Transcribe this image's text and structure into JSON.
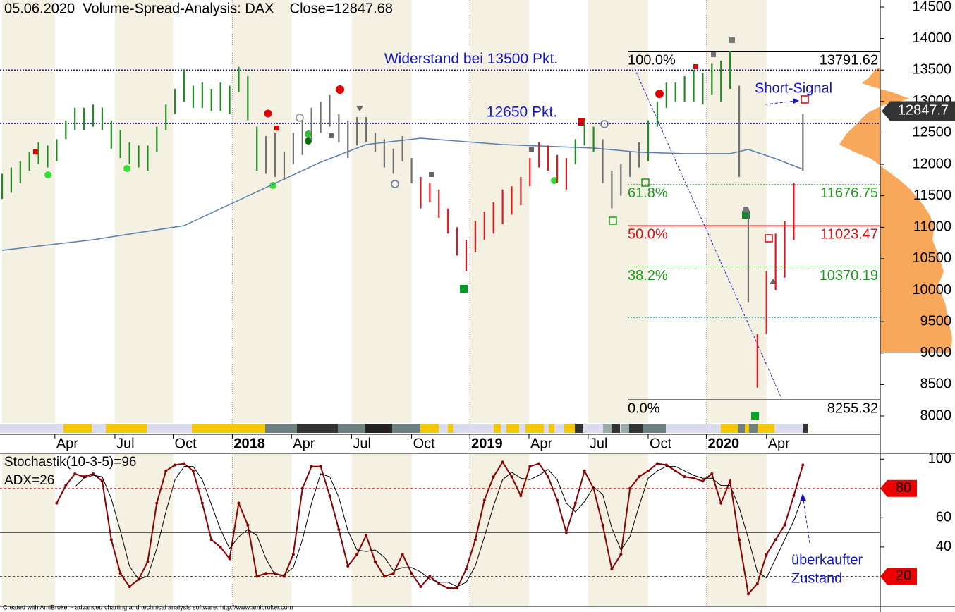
{
  "chart_data": [
    {
      "type": "bar-range",
      "title": "05.06.2020  Volume-Spread-Analysis: DAX    Close=12847.68",
      "xlim": [
        0,
        96.5
      ],
      "xticks": [
        {
          "value": 5.8,
          "label": "Apr"
        },
        {
          "value": 12.4,
          "label": "Jul"
        },
        {
          "value": 18.8,
          "label": "Oct"
        },
        {
          "value": 25.3,
          "label": "2018"
        },
        {
          "value": 31.8,
          "label": "Apr"
        },
        {
          "value": 38.4,
          "label": "Jul"
        },
        {
          "value": 45.0,
          "label": "Oct"
        },
        {
          "value": 51.4,
          "label": "2019"
        },
        {
          "value": 57.9,
          "label": "Apr"
        },
        {
          "value": 64.4,
          "label": "Jul"
        },
        {
          "value": 71.0,
          "label": "Oct"
        },
        {
          "value": 77.4,
          "label": "2020"
        },
        {
          "value": 84.0,
          "label": "Apr"
        }
      ],
      "ylim": [
        8000,
        14500
      ],
      "yticks": [
        8000,
        8500,
        9000,
        9500,
        10000,
        10500,
        11000,
        11500,
        12000,
        12500,
        13000,
        13500,
        14000,
        14500
      ],
      "x": [
        0,
        1,
        2,
        3,
        4,
        5,
        6,
        7,
        8,
        9,
        10,
        11,
        12,
        13,
        14,
        15,
        16,
        17,
        18,
        19,
        20,
        21,
        22,
        23,
        24,
        25,
        26,
        27,
        28,
        29,
        30,
        31,
        32,
        33,
        34,
        35,
        36,
        37,
        38,
        39,
        40,
        41,
        42,
        43,
        44,
        45,
        46,
        47,
        48,
        49,
        50,
        51,
        52,
        53,
        54,
        55,
        56,
        57,
        58,
        59,
        60,
        61,
        62,
        63,
        64,
        65,
        66,
        67,
        68,
        69,
        70,
        71,
        72,
        73,
        74,
        75,
        76,
        77,
        78,
        79,
        80,
        81,
        82,
        83,
        84,
        85,
        86,
        87,
        88
      ],
      "low": [
        11450,
        11550,
        11700,
        11900,
        12000,
        11950,
        12050,
        12400,
        12550,
        12550,
        12600,
        12550,
        12250,
        12100,
        12000,
        11950,
        11900,
        12200,
        12550,
        12800,
        13000,
        12900,
        12900,
        12850,
        12850,
        12800,
        13150,
        12700,
        11900,
        11850,
        11800,
        11750,
        12000,
        12150,
        12400,
        12500,
        12600,
        12350,
        12100,
        12300,
        12350,
        12200,
        11950,
        11850,
        12050,
        11700,
        11300,
        11400,
        11150,
        10900,
        10550,
        10300,
        10600,
        10800,
        10900,
        11050,
        11200,
        11350,
        11650,
        11950,
        11900,
        11700,
        11600,
        12000,
        12300,
        12200,
        11700,
        11300,
        11500,
        11800,
        11950,
        12050,
        12600,
        12900,
        13000,
        13000,
        13000,
        12950,
        13100,
        13000,
        13200,
        11800,
        9800,
        8450,
        9300,
        10000,
        10200,
        10800,
        11900
      ],
      "high": [
        11850,
        11950,
        12050,
        12200,
        12350,
        12300,
        12400,
        12700,
        12900,
        12900,
        12950,
        12900,
        12700,
        12550,
        12350,
        12300,
        12300,
        12600,
        12950,
        13200,
        13500,
        13250,
        13300,
        13200,
        13300,
        13250,
        13550,
        13400,
        12600,
        12450,
        12500,
        12200,
        12500,
        12700,
        12900,
        13000,
        13100,
        12800,
        12700,
        12750,
        12750,
        12500,
        12400,
        12250,
        12450,
        12100,
        11800,
        11700,
        11600,
        11300,
        11000,
        10800,
        11100,
        11250,
        11400,
        11600,
        11650,
        11800,
        12100,
        12350,
        12300,
        12150,
        12100,
        12400,
        12700,
        12600,
        12400,
        11900,
        12000,
        12200,
        12350,
        12700,
        13000,
        13300,
        13300,
        13400,
        13500,
        13450,
        13600,
        13650,
        13800,
        13250,
        11300,
        9300,
        10300,
        10900,
        11100,
        11700,
        12800
      ],
      "trend": [
        "g",
        "g",
        "g",
        "g",
        "g",
        "g",
        "g",
        "g",
        "g",
        "g",
        "g",
        "g",
        "g",
        "g",
        "g",
        "g",
        "g",
        "g",
        "g",
        "g",
        "g",
        "g",
        "g",
        "g",
        "g",
        "g",
        "g",
        "g",
        "g",
        "k",
        "k",
        "k",
        "k",
        "k",
        "k",
        "k",
        "k",
        "k",
        "k",
        "k",
        "k",
        "k",
        "k",
        "k",
        "k",
        "k",
        "r",
        "r",
        "r",
        "r",
        "r",
        "r",
        "r",
        "r",
        "r",
        "r",
        "r",
        "r",
        "r",
        "r",
        "r",
        "r",
        "r",
        "g",
        "g",
        "g",
        "k",
        "k",
        "k",
        "k",
        "k",
        "g",
        "g",
        "g",
        "g",
        "g",
        "g",
        "g",
        "g",
        "g",
        "g",
        "k",
        "k",
        "r",
        "r",
        "r",
        "r",
        "r",
        "k"
      ],
      "trend_colors": {
        "g": "#1e8c1e",
        "r": "#e8141c",
        "k": "#6e6e6e"
      },
      "ma": {
        "x": [
          0,
          10,
          20,
          25,
          30,
          35,
          40,
          46,
          55,
          65,
          70,
          75,
          80,
          82,
          85,
          88
        ],
        "values": [
          10634,
          10802,
          11026,
          11362,
          11698,
          12034,
          12315,
          12415,
          12315,
          12259,
          12192,
          12170,
          12170,
          12237,
          12090,
          11922
        ],
        "color": "#5b7db0"
      },
      "hlines": [
        {
          "value": 13500,
          "label": "Widerstand bei 13500 Pkt.",
          "color": "#1515c8"
        },
        {
          "value": 12650,
          "label": "12650 Pkt.",
          "color": "#1515c8"
        }
      ],
      "fib": [
        {
          "level_label": "100.0%",
          "value": 13791.62,
          "color": "#000000",
          "dash": false
        },
        {
          "level_label": "61.8%",
          "value": 11676.75,
          "color": "#1a9a1a",
          "dash": true
        },
        {
          "level_label": "50.0%",
          "value": 11023.47,
          "color": "#e01010",
          "dash": false
        },
        {
          "level_label": "38.2%",
          "value": 10370.19,
          "color": "#1a9a1a",
          "dash": true
        },
        {
          "level_label": null,
          "value": 9562,
          "color": "#40b0a0",
          "dash": true
        },
        {
          "level_label": "0.0%",
          "value": 8255.32,
          "color": "#000000",
          "dash": false
        }
      ],
      "last_price": {
        "value": 12847.68,
        "label": "12847.7"
      },
      "annotation": "Short-Signal"
    },
    {
      "type": "line",
      "title": "Stochastik(10-3-5)=96",
      "subtitle": "ADX=26",
      "annotation": [
        "überkaufter",
        "Zustand"
      ],
      "xlim": [
        0,
        96.5
      ],
      "ylim": [
        0,
        103
      ],
      "yticks": [
        40,
        60,
        100
      ],
      "levels": [
        80,
        20
      ],
      "midline": 50,
      "series": [
        {
          "color": "#8b0000",
          "values": [
            null,
            null,
            null,
            null,
            null,
            null,
            70,
            82,
            90,
            88,
            90,
            85,
            45,
            22,
            13,
            18,
            30,
            70,
            92,
            96,
            97,
            92,
            70,
            45,
            40,
            32,
            70,
            55,
            20,
            22,
            22,
            20,
            35,
            80,
            95,
            95,
            75,
            52,
            27,
            35,
            48,
            30,
            20,
            22,
            35,
            22,
            13,
            20,
            15,
            12,
            12,
            25,
            45,
            72,
            88,
            98,
            88,
            75,
            95,
            97,
            88,
            72,
            50,
            70,
            92,
            80,
            55,
            25,
            35,
            80,
            88,
            92,
            97,
            96,
            92,
            88,
            87,
            85,
            90,
            70,
            85,
            45,
            8,
            15,
            35,
            45,
            55,
            75,
            96
          ]
        },
        {
          "color": "#000000",
          "values": [
            null,
            null,
            null,
            null,
            null,
            null,
            null,
            null,
            81,
            87,
            89,
            88,
            73,
            51,
            27,
            18,
            20,
            39,
            64,
            86,
            95,
            95,
            86,
            69,
            52,
            39,
            47,
            52,
            48,
            32,
            21,
            21,
            26,
            45,
            70,
            90,
            88,
            74,
            51,
            38,
            37,
            38,
            33,
            24,
            26,
            26,
            23,
            18,
            16,
            16,
            13,
            16,
            27,
            47,
            68,
            86,
            91,
            87,
            86,
            89,
            93,
            86,
            70,
            64,
            71,
            81,
            76,
            53,
            38,
            47,
            68,
            87,
            92,
            95,
            95,
            92,
            89,
            87,
            87,
            82,
            82,
            67,
            46,
            23,
            19,
            32,
            45,
            58,
            75
          ]
        }
      ]
    }
  ],
  "footer": "Created with AmiBroker - advanced charting and technical analysis software. http://www.amibroker.com"
}
